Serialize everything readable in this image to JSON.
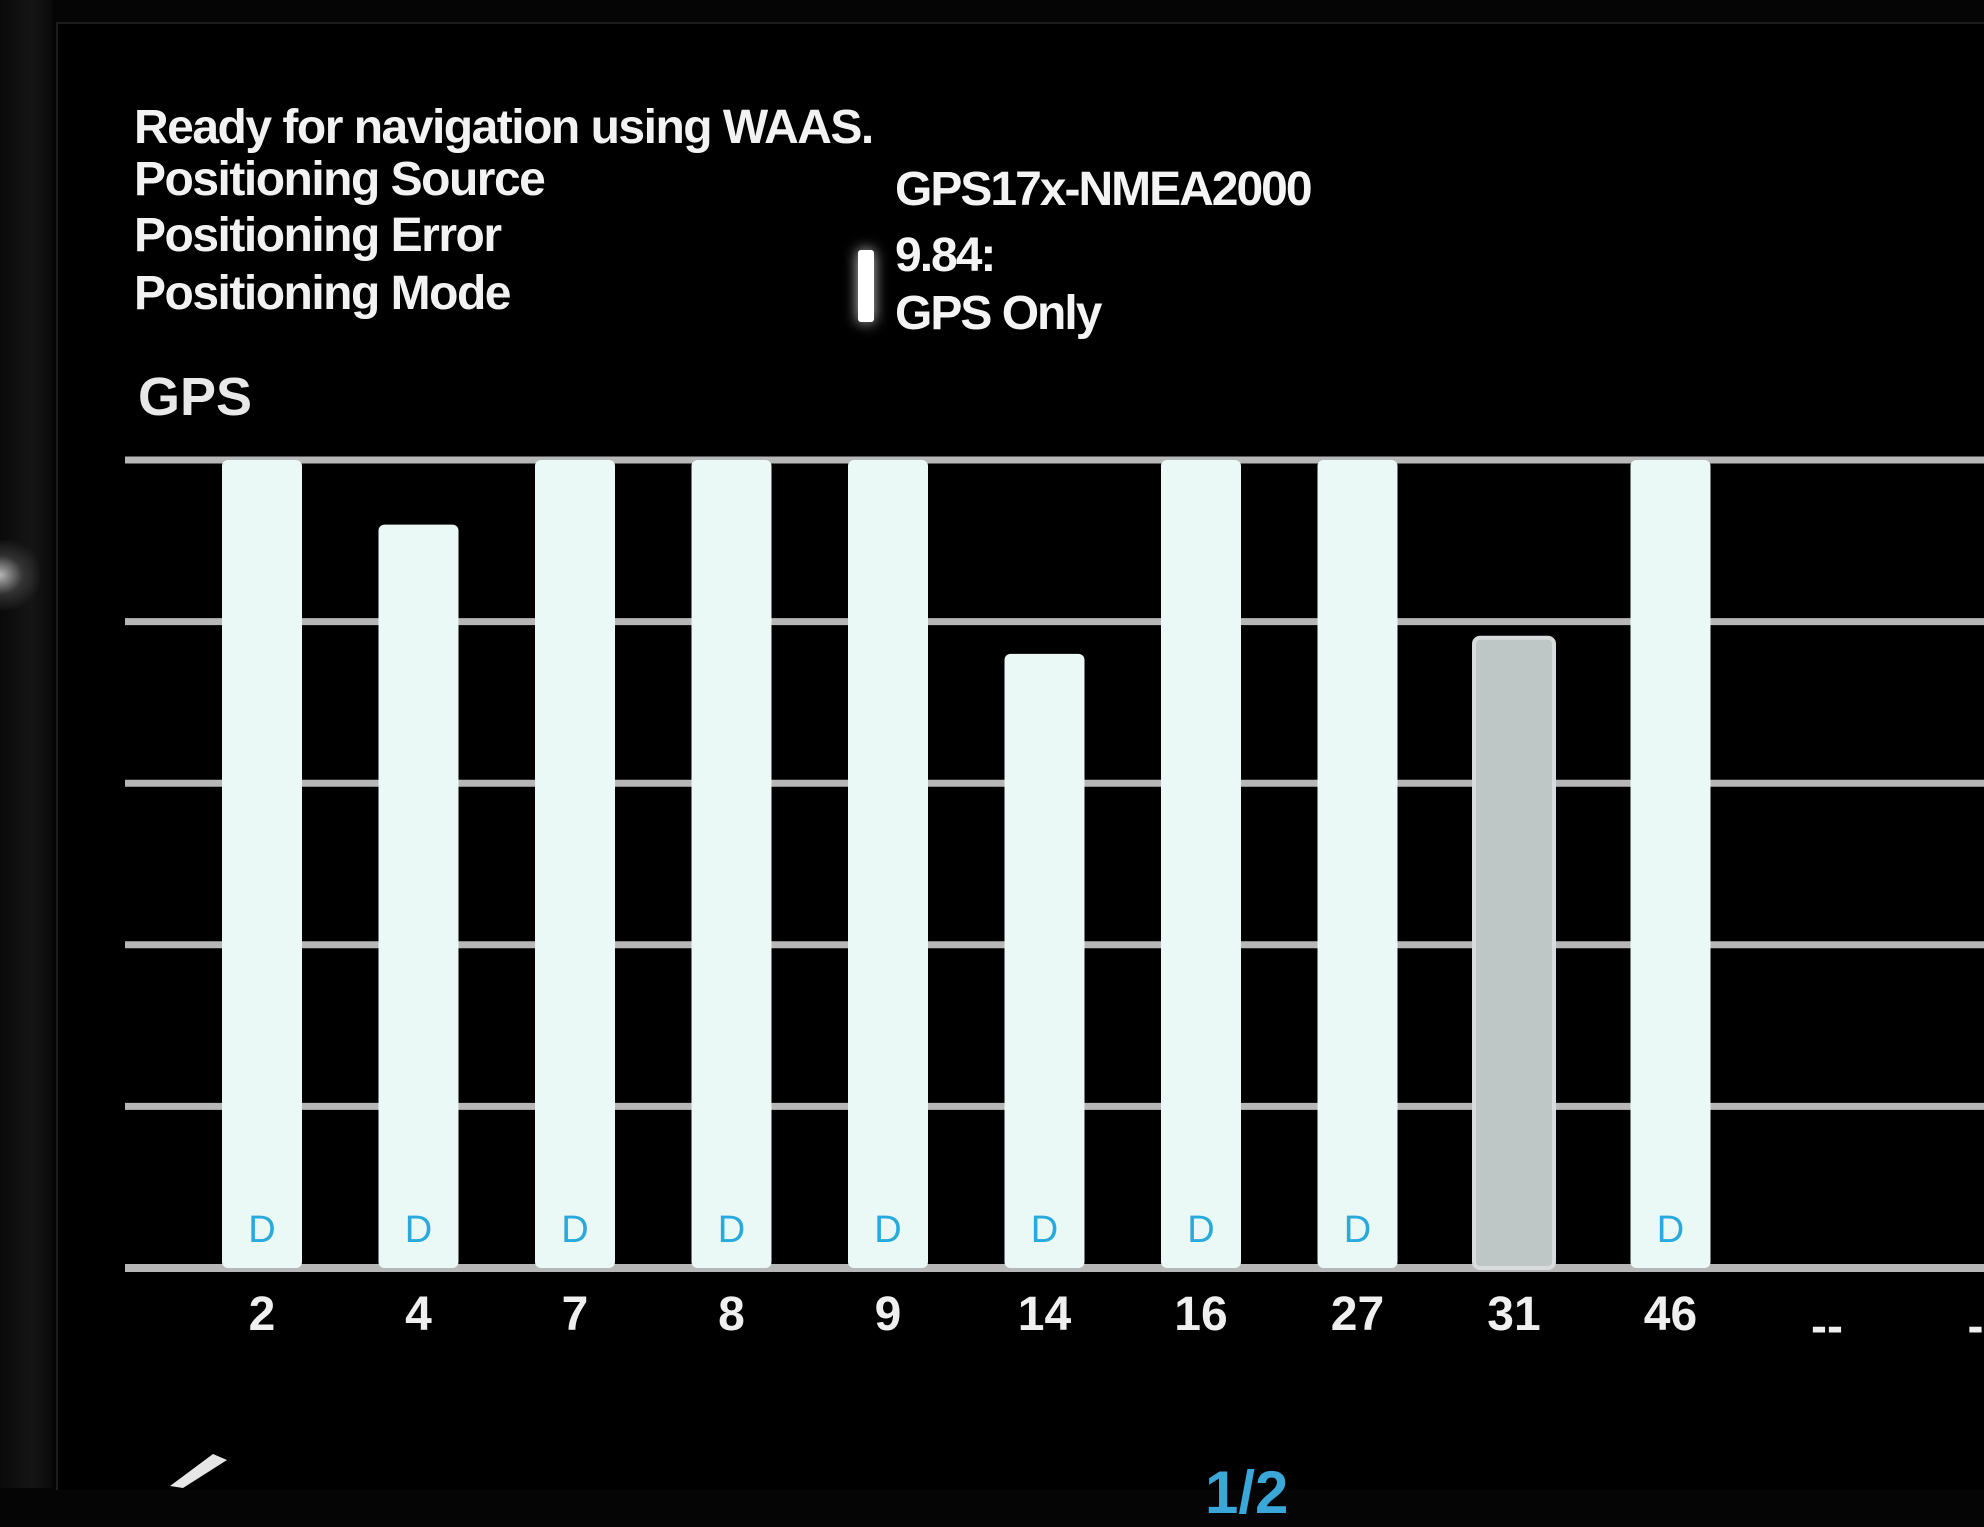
{
  "status": "Ready for navigation using WAAS.",
  "info": [
    {
      "label": "Positioning Source",
      "value": "GPS17x-NMEA2000"
    },
    {
      "label": "Positioning Error",
      "value": "9.84:"
    },
    {
      "label": "Positioning Mode",
      "value": "GPS Only"
    }
  ],
  "section_title": "GPS",
  "footer": {
    "page_indicator": "1/2",
    "edit_icon": "pencil-icon"
  },
  "colors": {
    "bar_active": "#eaf9f6",
    "bar_tracked": "#bfc6c6",
    "flag": "#29a9dc",
    "grid": "#b7b7b7"
  },
  "chart_data": {
    "type": "bar",
    "title": "GPS",
    "categories": [
      "2",
      "4",
      "7",
      "8",
      "9",
      "14",
      "16",
      "27",
      "31",
      "46"
    ],
    "values": [
      100,
      92,
      100,
      100,
      100,
      76,
      100,
      100,
      78,
      100
    ],
    "flags": [
      "D",
      "D",
      "D",
      "D",
      "D",
      "D",
      "D",
      "D",
      "",
      "D"
    ],
    "states": [
      "active",
      "active",
      "active",
      "active",
      "active",
      "active",
      "active",
      "active",
      "tracked",
      "active"
    ],
    "empty_slots": [
      "--",
      "--"
    ],
    "ylim": [
      0,
      100
    ],
    "gridlines": 5,
    "grid": true,
    "legend": "none"
  }
}
